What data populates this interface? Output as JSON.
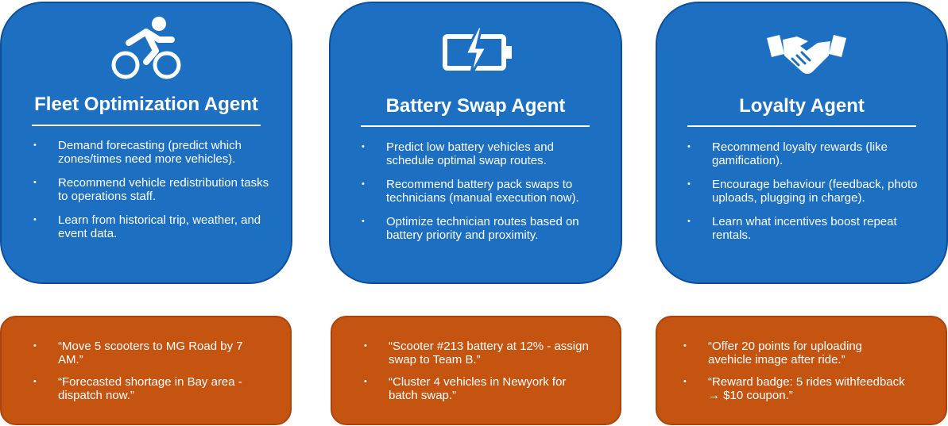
{
  "agents": [
    {
      "title": "Fleet Optimization Agent",
      "icon": "bicycle-icon",
      "bullets": [
        "Demand forecasting (predict which zones/times need more vehicles).",
        "Recommend vehicle redistribution tasks to operations staff.",
        "Learn from historical trip, weather, and event data."
      ],
      "examples": [
        "“Move 5 scooters to MG Road by 7 AM.”",
        "“Forecasted shortage in Bay area - dispatch now.”"
      ]
    },
    {
      "title": "Battery Swap Agent",
      "icon": "battery-charging-icon",
      "bullets": [
        "Predict low battery vehicles and schedule optimal swap routes.",
        "Recommend battery pack swaps to technicians (manual execution now).",
        "Optimize technician routes based on battery priority and proximity."
      ],
      "examples": [
        "“Scooter #213 battery at 12% - assign swap to Team B.”",
        "“Cluster 4 vehicles in Newyork for batch swap.”"
      ]
    },
    {
      "title": "Loyalty Agent",
      "icon": "handshake-icon",
      "bullets": [
        "Recommend loyalty rewards (like gamification).",
        "Encourage behaviour (feedback, photo uploads, plugging in charge).",
        "Learn what incentives boost repeat rentals."
      ],
      "examples": [
        "“Offer 20 points for uploading avehicle image after ride.”",
        "“Reward badge: 5 rides withfeedback → $10 coupon.”"
      ]
    }
  ],
  "colors": {
    "agent_card": "#1d6fc2",
    "example_card": "#c55411",
    "text": "#ffffff"
  }
}
